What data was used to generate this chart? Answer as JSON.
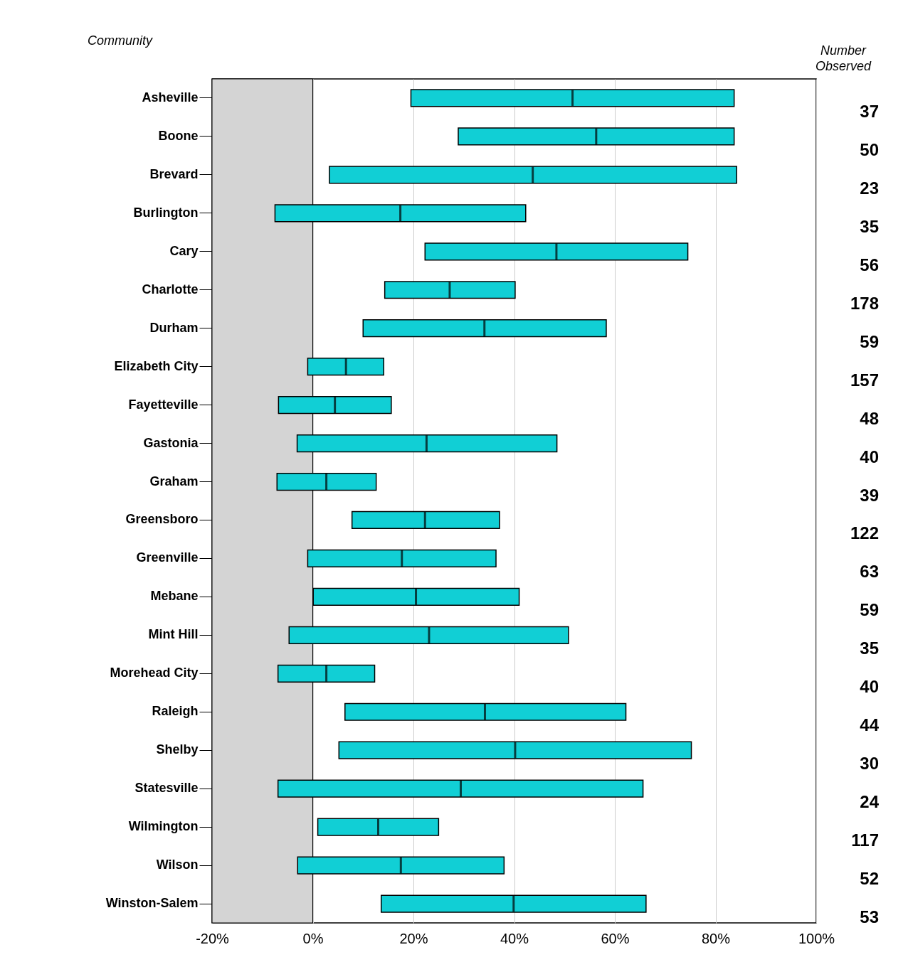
{
  "chart_data": {
    "type": "box",
    "orientation": "horizontal",
    "ylabel": "Community",
    "y2label": "Number Observed",
    "color": "#11cfd5",
    "categories": [
      "Asheville",
      "Boone",
      "Brevard",
      "Burlington",
      "Cary",
      "Charlotte",
      "Durham",
      "Elizabeth City",
      "Fayetteville",
      "Gastonia",
      "Graham",
      "Greensboro",
      "Greenville",
      "Mebane",
      "Mint Hill",
      "Morehead City",
      "Raleigh",
      "Shelby",
      "Statesville",
      "Wilmington",
      "Wilson",
      "Winston-Salem"
    ],
    "boxes": [
      {
        "low": 19.5,
        "q1": 19.5,
        "median": 51.6,
        "q3": 83.7,
        "high": 83.7
      },
      {
        "low": 28.9,
        "q1": 28.9,
        "median": 56.3,
        "q3": 83.7,
        "high": 83.7
      },
      {
        "low": 3.3,
        "q1": 3.3,
        "median": 43.7,
        "q3": 84.2,
        "high": 84.2
      },
      {
        "low": -7.5,
        "q1": -7.5,
        "median": 17.4,
        "q3": 42.3,
        "high": 42.3
      },
      {
        "low": 22.3,
        "q1": 22.3,
        "median": 48.4,
        "q3": 74.5,
        "high": 74.5
      },
      {
        "low": 14.3,
        "q1": 14.3,
        "median": 27.2,
        "q3": 40.2,
        "high": 40.2
      },
      {
        "low": 10.0,
        "q1": 10.0,
        "median": 34.1,
        "q3": 58.3,
        "high": 58.3
      },
      {
        "low": -1.0,
        "q1": -1.0,
        "median": 6.6,
        "q3": 14.1,
        "high": 14.1
      },
      {
        "low": -6.8,
        "q1": -6.8,
        "median": 4.4,
        "q3": 15.6,
        "high": 15.6
      },
      {
        "low": -3.1,
        "q1": -3.1,
        "median": 22.6,
        "q3": 48.5,
        "high": 48.5
      },
      {
        "low": -7.1,
        "q1": -7.1,
        "median": 2.7,
        "q3": 12.6,
        "high": 12.6
      },
      {
        "low": 7.8,
        "q1": 7.8,
        "median": 22.3,
        "q3": 37.1,
        "high": 37.1
      },
      {
        "low": -1.0,
        "q1": -1.0,
        "median": 17.7,
        "q3": 36.4,
        "high": 36.4
      },
      {
        "low": 0.1,
        "q1": 0.1,
        "median": 20.5,
        "q3": 41.0,
        "high": 41.0
      },
      {
        "low": -4.7,
        "q1": -4.7,
        "median": 23.1,
        "q3": 50.8,
        "high": 50.8
      },
      {
        "low": -6.9,
        "q1": -6.9,
        "median": 2.7,
        "q3": 12.3,
        "high": 12.3
      },
      {
        "low": 6.4,
        "q1": 6.4,
        "median": 34.2,
        "q3": 62.2,
        "high": 62.2
      },
      {
        "low": 5.2,
        "q1": 5.2,
        "median": 40.2,
        "q3": 75.2,
        "high": 75.2
      },
      {
        "low": -6.9,
        "q1": -6.9,
        "median": 29.4,
        "q3": 65.6,
        "high": 65.6
      },
      {
        "low": 1.0,
        "q1": 1.0,
        "median": 13.0,
        "q3": 25.0,
        "high": 25.0
      },
      {
        "low": -3.0,
        "q1": -3.0,
        "median": 17.5,
        "q3": 38.0,
        "high": 38.0
      },
      {
        "low": 13.6,
        "q1": 13.6,
        "median": 39.9,
        "q3": 66.2,
        "high": 66.2
      }
    ],
    "xlim": [
      -20,
      100
    ],
    "xticks": [
      {
        "value": -20,
        "label": "-20%"
      },
      {
        "value": 0,
        "label": "0%"
      },
      {
        "value": 20,
        "label": "20%"
      },
      {
        "value": 40,
        "label": "40%"
      },
      {
        "value": 60,
        "label": "60%"
      },
      {
        "value": 80,
        "label": "80%"
      },
      {
        "value": 100,
        "label": "100%"
      }
    ],
    "grid": "x",
    "bands": [
      {
        "axis": "x",
        "from": -20,
        "to": 0,
        "color": "#d4d4d4"
      }
    ],
    "annotations": [
      "37",
      "50",
      "23",
      "35",
      "56",
      "178",
      "59",
      "157",
      "48",
      "40",
      "39",
      "122",
      "63",
      "59",
      "35",
      "40",
      "44",
      "30",
      "24",
      "117",
      "52",
      "53"
    ]
  }
}
